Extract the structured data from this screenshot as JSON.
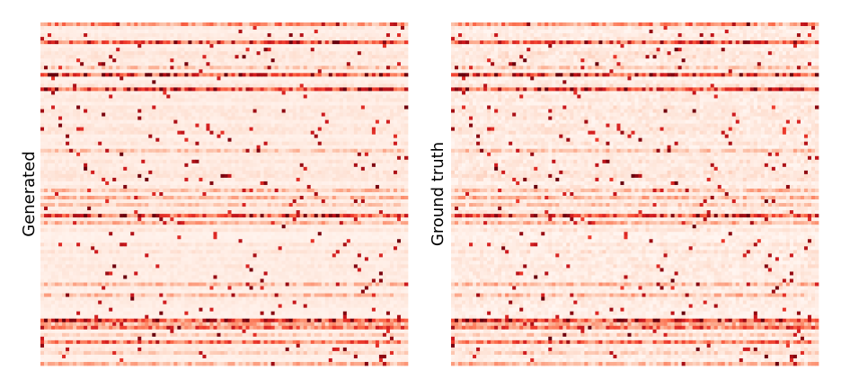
{
  "chart_data": [
    {
      "type": "heatmap",
      "ylabel": "Generated",
      "colormap": "Reds",
      "colors": {
        "low": "#fff5f0",
        "mid": "#fb6a4a",
        "high": "#67000d"
      },
      "grid": false,
      "legend": "none"
    },
    {
      "type": "heatmap",
      "ylabel": "Ground truth",
      "colormap": "Reds",
      "colors": {
        "low": "#fff5f0",
        "mid": "#fb6a4a",
        "high": "#67000d"
      },
      "grid": false,
      "legend": "none"
    }
  ]
}
